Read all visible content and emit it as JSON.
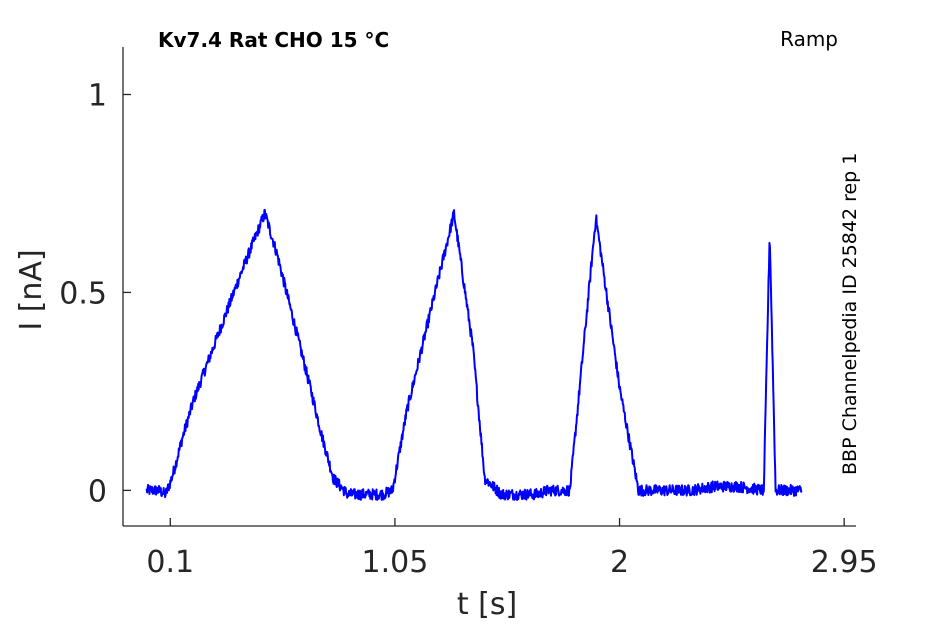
{
  "chart_data": {
    "type": "line",
    "title": "Kv7.4  Rat  CHO  15 °C",
    "protocol": "Ramp",
    "side_label": "BBP Channelpedia ID 25842 rep 1",
    "xlabel": "t [s]",
    "ylabel": "I [nA]",
    "xlim": [
      -0.1,
      3.0
    ],
    "ylim": [
      -0.09,
      1.12
    ],
    "xticks": [
      0.1,
      1.05,
      2.0,
      2.95
    ],
    "xtick_labels": [
      "0.1",
      "1.05",
      "2",
      "2.95"
    ],
    "yticks": [
      0,
      0.5,
      1
    ],
    "ytick_labels": [
      "0",
      "0.5",
      "1"
    ],
    "grid": false,
    "series": [
      {
        "color": "#0000ff",
        "x": [
          0.0,
          0.05,
          0.08,
          0.1,
          0.12,
          0.15,
          0.2,
          0.3,
          0.4,
          0.5,
          0.55,
          0.6,
          0.65,
          0.7,
          0.74,
          0.79,
          0.85,
          0.9,
          0.95,
          1.0,
          1.04,
          1.1,
          1.2,
          1.3,
          1.38,
          1.43,
          1.5,
          1.55,
          1.6,
          1.65,
          1.7,
          1.74,
          1.79,
          1.9,
          2.0,
          2.08,
          2.12,
          2.16,
          2.2,
          2.22,
          2.3,
          2.4,
          2.5,
          2.61,
          2.635,
          2.66,
          2.67,
          2.77
        ],
        "y": [
          0.0,
          0.0,
          -0.01,
          0.02,
          0.06,
          0.13,
          0.23,
          0.39,
          0.55,
          0.7,
          0.6,
          0.48,
          0.36,
          0.24,
          0.14,
          0.03,
          -0.01,
          -0.01,
          -0.01,
          -0.01,
          0.0,
          0.2,
          0.45,
          0.7,
          0.36,
          0.03,
          -0.01,
          -0.01,
          -0.01,
          -0.01,
          0.0,
          0.0,
          0.0,
          0.69,
          0.26,
          0.0,
          0.0,
          0.0,
          0.0,
          0.0,
          0.0,
          0.01,
          0.01,
          0.0,
          0.65,
          0.0,
          0.0,
          0.0
        ]
      }
    ]
  }
}
